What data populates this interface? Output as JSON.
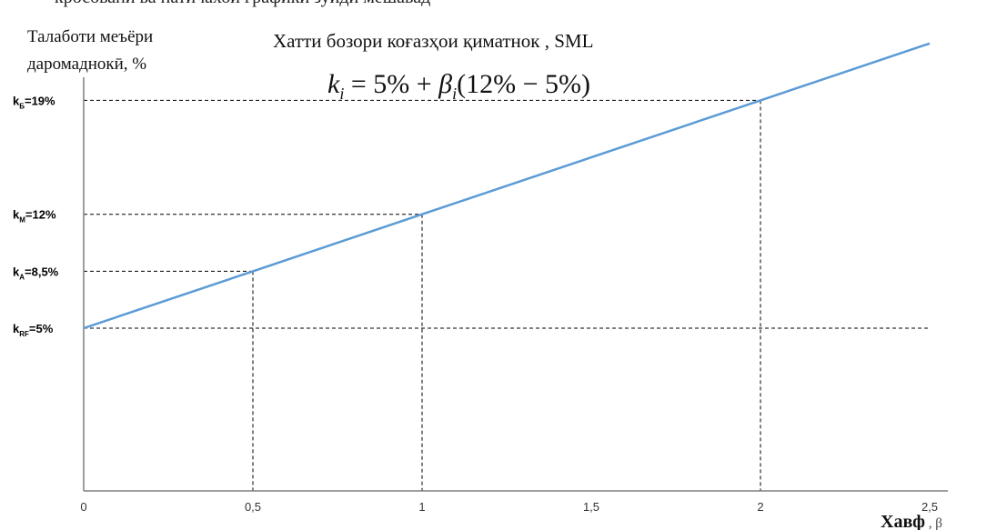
{
  "top_text": "кросовани ва натичахои графики зуиди мешавад",
  "chart_data": {
    "type": "line",
    "title": "Хатти бозори коғазҳои қиматнок , SML",
    "formula": {
      "lhs": "k",
      "lhs_sub": "i",
      "rhs_start": " = 5% + ",
      "beta": "β",
      "beta_sub": "i",
      "rhs_end": "(12% − 5%)"
    },
    "ylabel": [
      "Талаботи меъёри",
      "даромаднокӣ, %"
    ],
    "xlabel": "Хавф",
    "xlabel_symbol": ", β",
    "xlim": [
      0,
      2.5
    ],
    "ylim": [
      -5,
      28
    ],
    "xticks": [
      {
        "value": 0,
        "label": "0"
      },
      {
        "value": 0.5,
        "label": "0,5"
      },
      {
        "value": 1,
        "label": "1"
      },
      {
        "value": 1.5,
        "label": "1,5"
      },
      {
        "value": 2,
        "label": "2"
      },
      {
        "value": 2.5,
        "label": "2,5"
      }
    ],
    "series": [
      {
        "x": [
          0,
          0.5,
          1,
          1.5,
          2,
          2.5
        ],
        "y": [
          5,
          8.5,
          12,
          15.5,
          19,
          22.5
        ],
        "color": "#5b9bd5"
      }
    ],
    "reference_lines": [
      {
        "y": 5,
        "x": null,
        "label_main": "k",
        "label_sub": "RF",
        "label_end": "=5%"
      },
      {
        "y": 8.5,
        "x": 0.5,
        "label_main": "k",
        "label_sub": "A",
        "label_end": "=8,5%"
      },
      {
        "y": 12,
        "x": 1,
        "label_main": "k",
        "label_sub": "M",
        "label_end": "=12%"
      },
      {
        "y": 19,
        "x": 2,
        "label_main": "k",
        "label_sub": "Б",
        "label_end": "=19%"
      }
    ],
    "axis_color": "#7f7f7f",
    "guide_color": "#000000"
  }
}
